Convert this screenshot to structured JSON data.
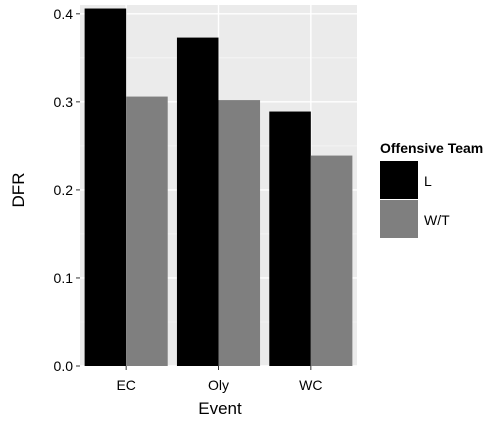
{
  "chart_data": {
    "type": "bar",
    "categories": [
      "EC",
      "Oly",
      "WC"
    ],
    "series": [
      {
        "name": "L",
        "values": [
          0.406,
          0.373,
          0.289
        ]
      },
      {
        "name": "W/T",
        "values": [
          0.306,
          0.302,
          0.239
        ]
      }
    ],
    "xlabel": "Event",
    "ylabel": "DFR",
    "ylim": [
      0,
      0.41
    ],
    "yticks": [
      0.0,
      0.1,
      0.2,
      0.3,
      0.4
    ],
    "ytick_labels": [
      "0.0",
      "0.1",
      "0.2",
      "0.3",
      "0.4"
    ],
    "legend": {
      "title": "Offensive Team",
      "placement": "right"
    },
    "grid": true,
    "colors": {
      "panel_background": "#ebebeb",
      "grid_major": "#ffffff",
      "grid_minor": "#f5f5f5",
      "series": [
        "#000000",
        "#7f7f7f"
      ],
      "text": "#000000"
    }
  }
}
